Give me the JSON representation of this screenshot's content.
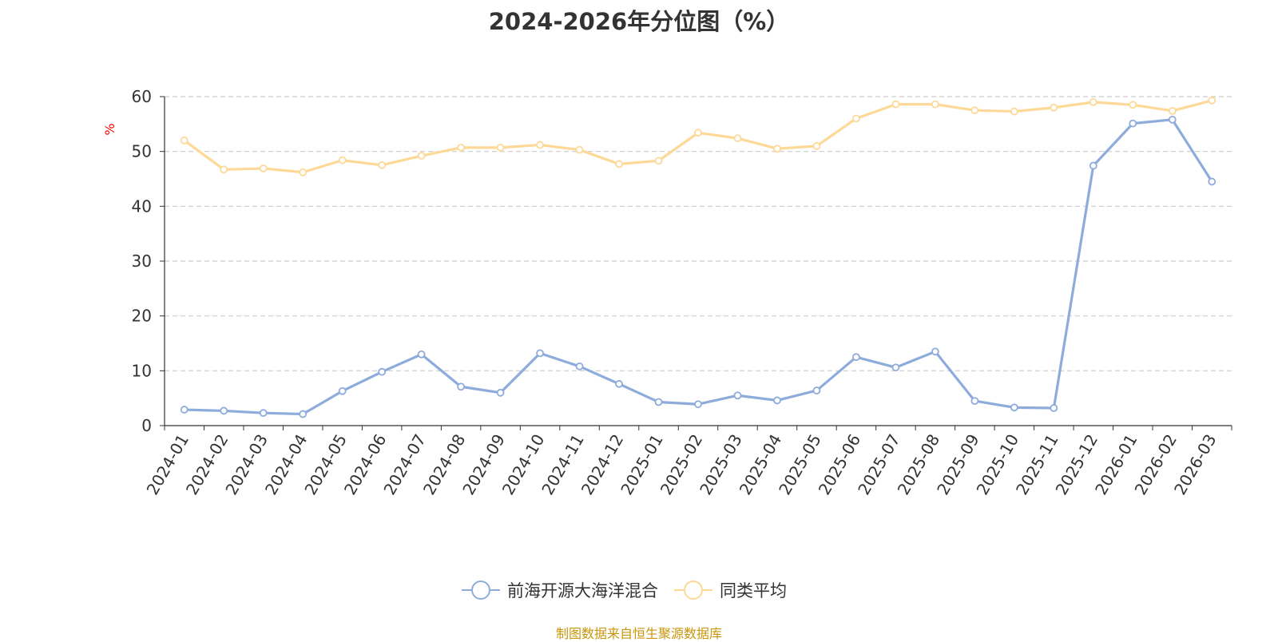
{
  "chart_data": {
    "type": "line",
    "title": "2024-2026年分位图（%）",
    "ylabel": "%",
    "ylim": [
      0,
      60
    ],
    "yticks": [
      0,
      10,
      20,
      30,
      40,
      50,
      60
    ],
    "grid": true,
    "legend_position": "bottom",
    "categories": [
      "2024-01",
      "2024-02",
      "2024-03",
      "2024-04",
      "2024-05",
      "2024-06",
      "2024-07",
      "2024-08",
      "2024-09",
      "2024-10",
      "2024-11",
      "2024-12",
      "2025-01",
      "2025-02",
      "2025-03",
      "2025-04",
      "2025-05",
      "2025-06",
      "2025-07",
      "2025-08",
      "2025-09",
      "2025-10",
      "2025-11",
      "2025-12",
      "2026-01",
      "2026-02",
      "2026-03"
    ],
    "series": [
      {
        "name": "前海开源大海洋混合",
        "color": "#8eacdb",
        "values": [
          2.9,
          2.7,
          2.3,
          2.1,
          6.3,
          9.8,
          13.0,
          7.1,
          6.0,
          13.2,
          10.8,
          7.6,
          4.3,
          3.9,
          5.5,
          4.6,
          6.4,
          12.5,
          10.6,
          13.5,
          4.5,
          3.3,
          3.2,
          47.4,
          55.1,
          55.8,
          44.5
        ]
      },
      {
        "name": "同类平均",
        "color": "#fdd998",
        "values": [
          52.0,
          46.7,
          46.9,
          46.2,
          48.4,
          47.5,
          49.2,
          50.7,
          50.7,
          51.2,
          50.3,
          47.7,
          48.3,
          53.4,
          52.4,
          50.5,
          51.0,
          56.0,
          58.6,
          58.6,
          57.5,
          57.3,
          58.0,
          59.0,
          58.5,
          57.4,
          59.3
        ]
      }
    ]
  },
  "footer": {
    "source_text": "制图数据来自恒生聚源数据库"
  }
}
